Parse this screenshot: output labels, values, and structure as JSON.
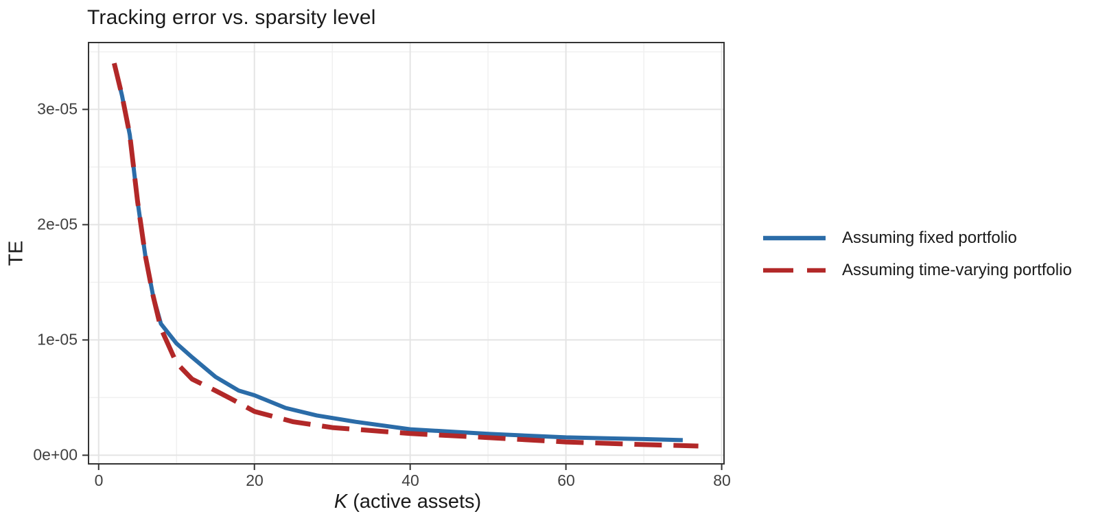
{
  "title": "Tracking error vs. sparsity level",
  "colors": {
    "background": "#ffffff",
    "panel_border": "#333333",
    "grid_major": "#e4e4e4",
    "grid_minor": "#f0f0f0",
    "tick_mark": "#333333",
    "tick_text": "#404040",
    "text": "#1a1a1a",
    "series_blue": "#2b6ca8",
    "series_red": "#b22828"
  },
  "axes": {
    "x": {
      "title_var": "K",
      "title_rest": " (active assets)",
      "tick_labels": [
        "0",
        "20",
        "40",
        "60",
        "80"
      ],
      "tick_values": [
        0,
        20,
        40,
        60,
        80
      ],
      "minor_values": [
        10,
        30,
        50,
        70
      ],
      "range": [
        -1.3,
        80.3
      ]
    },
    "y": {
      "title": "TE",
      "tick_labels": [
        "0e+00",
        "1e-05",
        "2e-05",
        "3e-05"
      ],
      "tick_values": [
        0,
        1e-05,
        2e-05,
        3e-05
      ],
      "minor_values": [
        5e-06,
        1.5e-05,
        2.5e-05,
        3.5e-05
      ],
      "range": [
        -7.5e-07,
        3.58e-05
      ]
    }
  },
  "legend": {
    "items": [
      {
        "label": "Assuming fixed portfolio",
        "color": "#2b6ca8",
        "linestyle": "solid"
      },
      {
        "label": "Assuming time-varying portfolio",
        "color": "#b22828",
        "linestyle": "dashed"
      }
    ]
  },
  "chart_data": {
    "type": "line",
    "title": "Tracking error vs. sparsity level",
    "xlabel": "K (active assets)",
    "ylabel": "TE",
    "xlim": [
      -1.3,
      80.3
    ],
    "ylim": [
      -7.5e-07,
      3.58e-05
    ],
    "grid": true,
    "legend_position": "right",
    "series": [
      {
        "name": "Assuming fixed portfolio",
        "color": "#2b6ca8",
        "style": "solid",
        "x": [
          2,
          3,
          4,
          5,
          6,
          7,
          8,
          10,
          12,
          15,
          18,
          20,
          24,
          28,
          33,
          40,
          50,
          60,
          70,
          75
        ],
        "y": [
          3.4e-05,
          3.12e-05,
          2.78e-05,
          2.2e-05,
          1.73e-05,
          1.38e-05,
          1.14e-05,
          9.7e-06,
          8.5e-06,
          6.8e-06,
          5.6e-06,
          5.2e-06,
          4.1e-06,
          3.45e-06,
          2.9e-06,
          2.25e-06,
          1.85e-06,
          1.55e-06,
          1.4e-06,
          1.31e-06
        ]
      },
      {
        "name": "Assuming time-varying portfolio",
        "color": "#b22828",
        "style": "dashed",
        "x": [
          2,
          3,
          4,
          5,
          6,
          7,
          8,
          10,
          12,
          15,
          17,
          20,
          25,
          30,
          40,
          50,
          60,
          70,
          77
        ],
        "y": [
          3.4e-05,
          3.12e-05,
          2.78e-05,
          2.2e-05,
          1.73e-05,
          1.38e-05,
          1.1e-05,
          8e-06,
          6.6e-06,
          5.6e-06,
          4.9e-06,
          3.8e-06,
          2.9e-06,
          2.4e-06,
          1.88e-06,
          1.53e-06,
          1.15e-06,
          9.2e-07,
          8e-07
        ]
      }
    ]
  }
}
